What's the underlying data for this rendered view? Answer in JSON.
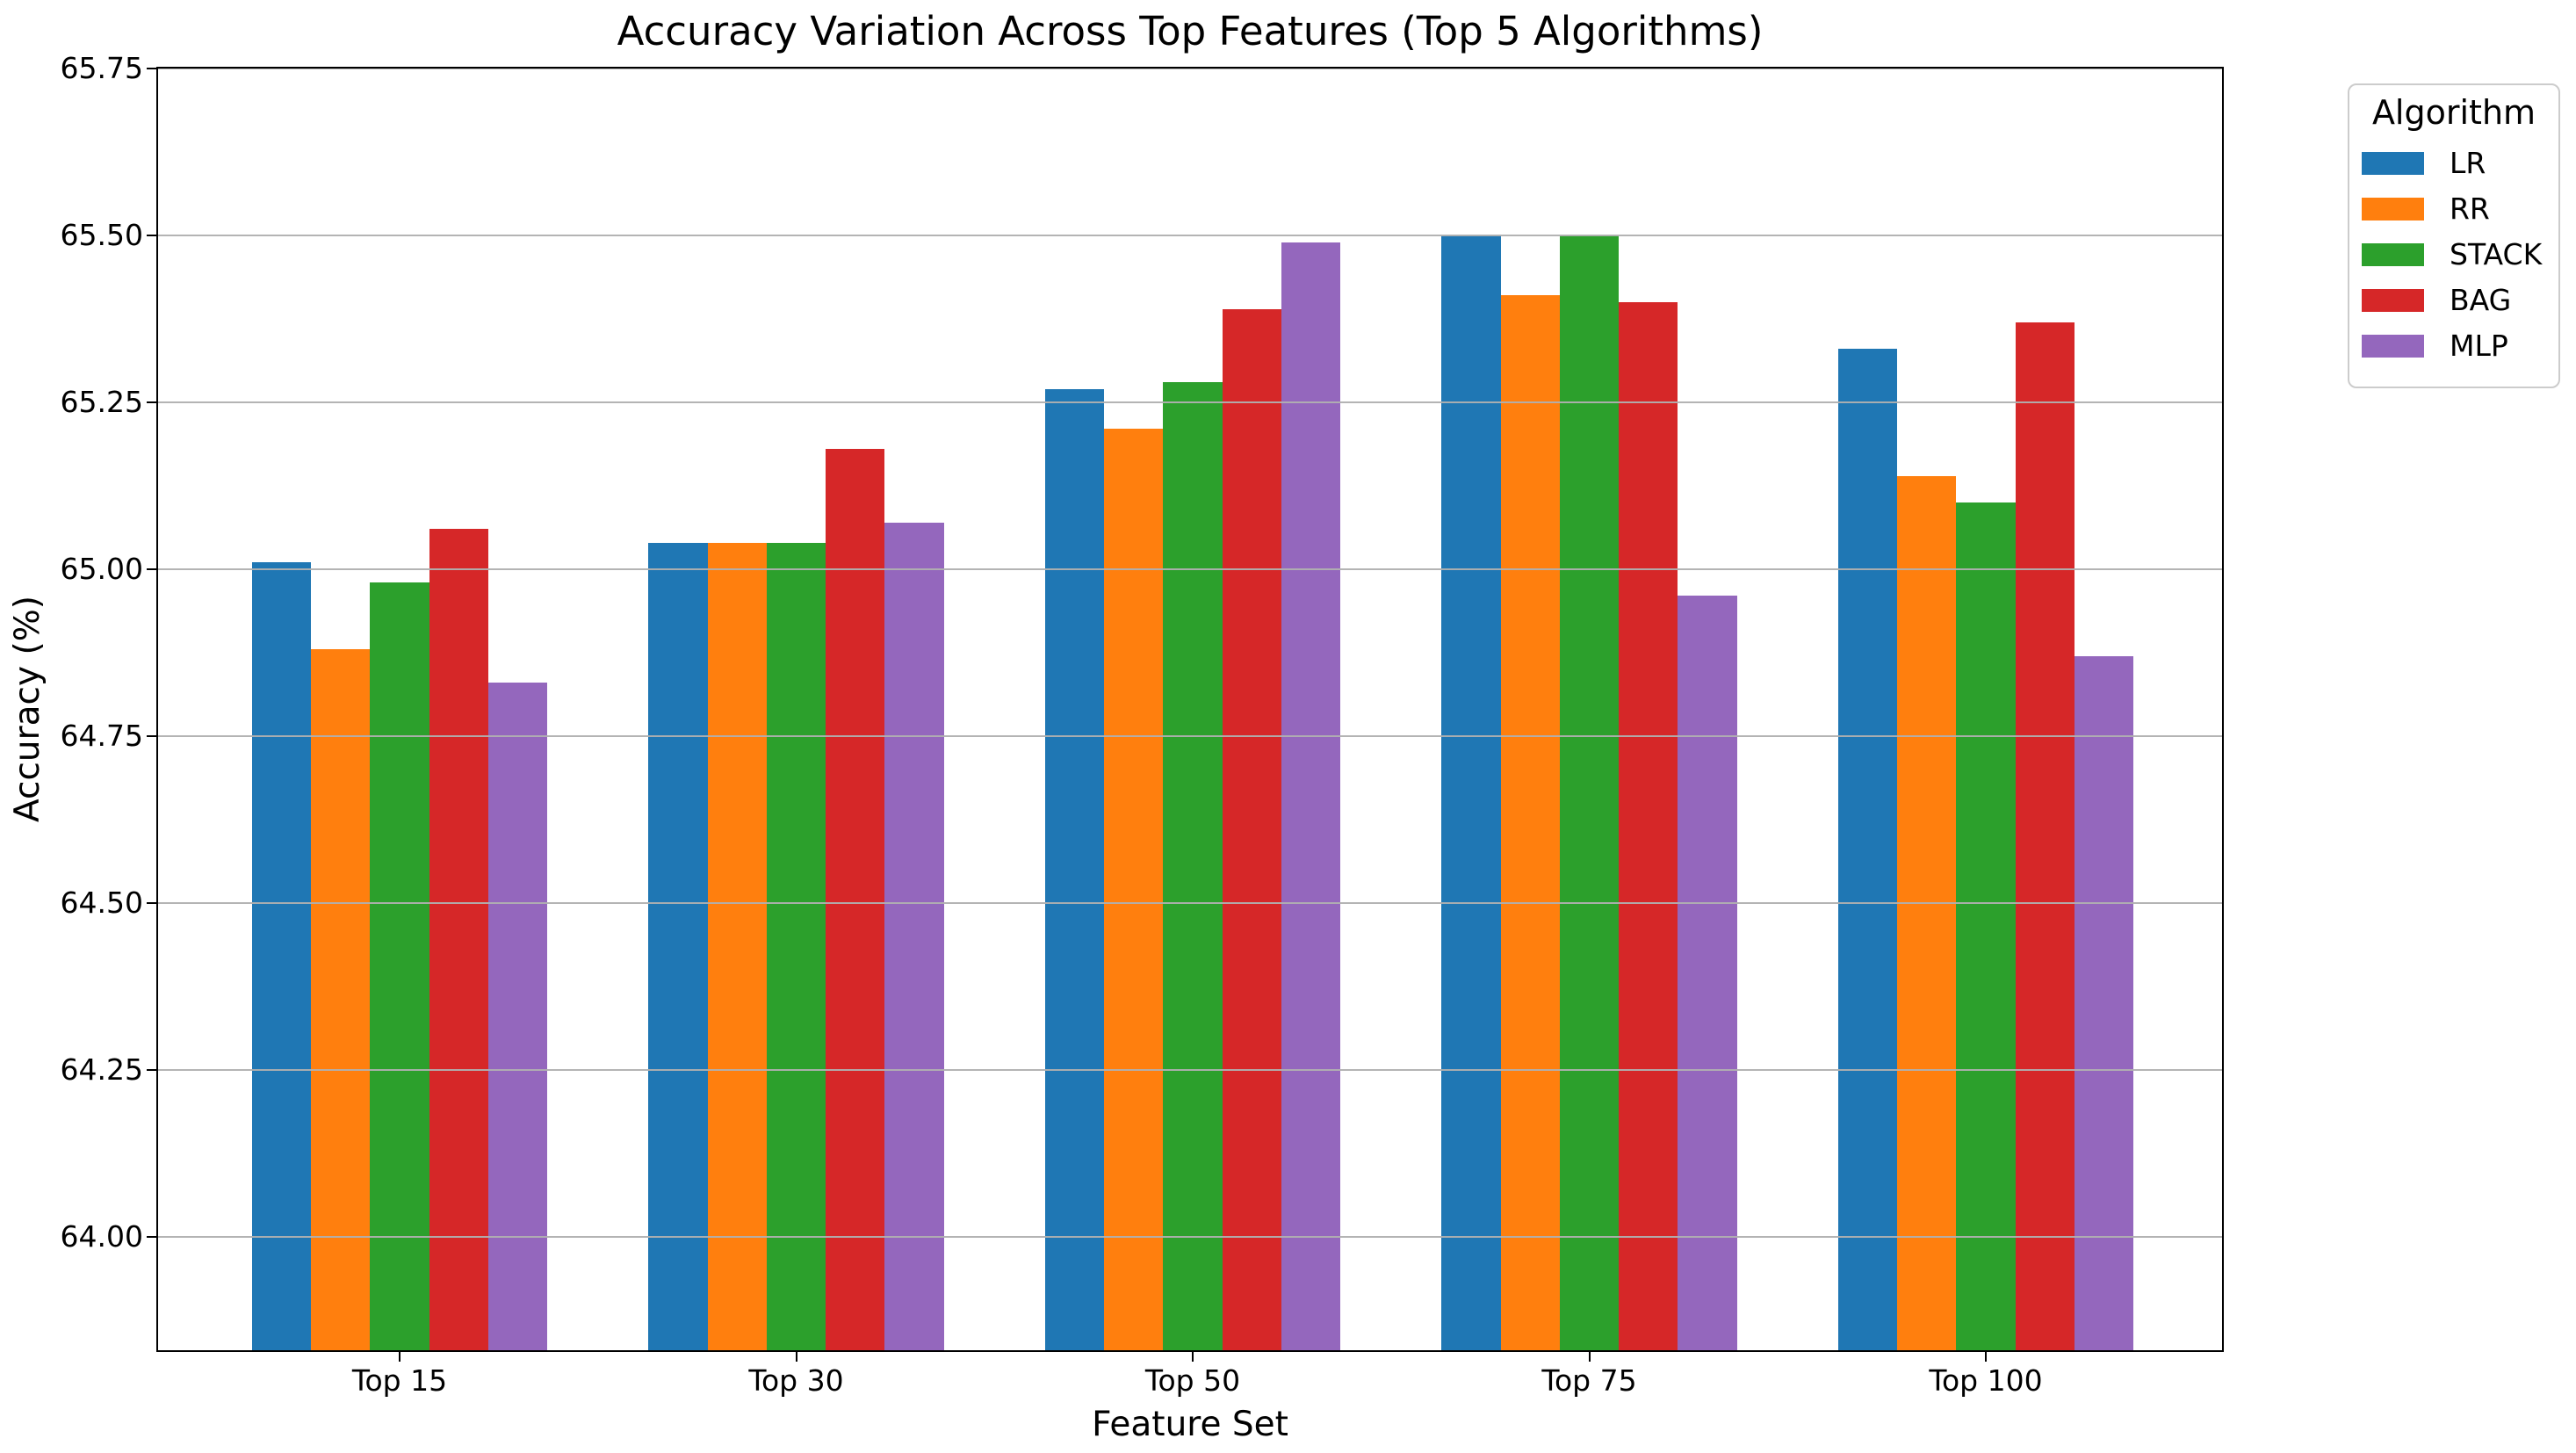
{
  "chart_data": {
    "type": "bar",
    "title": "Accuracy Variation Across Top Features (Top 5 Algorithms)",
    "xlabel": "Feature Set",
    "ylabel": "Accuracy (%)",
    "categories": [
      "Top 15",
      "Top 30",
      "Top 50",
      "Top 75",
      "Top 100"
    ],
    "series": [
      {
        "name": "LR",
        "color": "#1f77b4",
        "values": [
          65.01,
          65.04,
          65.27,
          65.5,
          65.33
        ]
      },
      {
        "name": "RR",
        "color": "#ff7f0e",
        "values": [
          64.88,
          65.04,
          65.21,
          65.41,
          65.14
        ]
      },
      {
        "name": "STACK",
        "color": "#2ca02c",
        "values": [
          64.98,
          65.04,
          65.28,
          65.5,
          65.1
        ]
      },
      {
        "name": "BAG",
        "color": "#d62728",
        "values": [
          65.06,
          65.18,
          65.39,
          65.4,
          65.37
        ]
      },
      {
        "name": "MLP",
        "color": "#9467bd",
        "values": [
          64.83,
          65.07,
          65.49,
          64.96,
          64.87
        ]
      }
    ],
    "ylim": [
      63.83,
      65.75
    ],
    "y_ticks": [
      "64.00",
      "64.25",
      "64.50",
      "64.75",
      "65.00",
      "65.25",
      "65.50",
      "65.75"
    ],
    "grid": "horizontal",
    "grid_color": "#b0b0b0",
    "legend": {
      "title": "Algorithm",
      "position": "upper right outside"
    }
  }
}
